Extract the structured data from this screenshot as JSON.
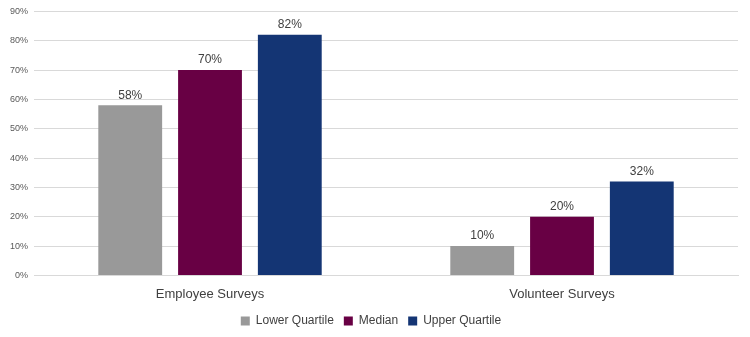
{
  "chart_data": {
    "type": "bar",
    "categories": [
      "Employee Surveys",
      "Volunteer Surveys"
    ],
    "series": [
      {
        "name": "Lower Quartile",
        "color": "#999999",
        "values": [
          58,
          10
        ],
        "value_labels": [
          "58%",
          "10%"
        ]
      },
      {
        "name": "Median",
        "color": "#680044",
        "values": [
          70,
          20
        ],
        "value_labels": [
          "70%",
          "20%"
        ]
      },
      {
        "name": "Upper Quartile",
        "color": "#143574",
        "values": [
          82,
          32
        ],
        "value_labels": [
          "82%",
          "32%"
        ]
      }
    ],
    "ylim": [
      0,
      90
    ],
    "yticks": [
      {
        "value": 0,
        "label": "0%"
      },
      {
        "value": 10,
        "label": "10%"
      },
      {
        "value": 20,
        "label": "20%"
      },
      {
        "value": 30,
        "label": "30%"
      },
      {
        "value": 40,
        "label": "40%"
      },
      {
        "value": 50,
        "label": "50%"
      },
      {
        "value": 60,
        "label": "60%"
      },
      {
        "value": 70,
        "label": "70%"
      },
      {
        "value": 80,
        "label": "80%"
      },
      {
        "value": 90,
        "label": "90%"
      }
    ],
    "grid": true,
    "legend": "bottom",
    "data_labels": true
  }
}
